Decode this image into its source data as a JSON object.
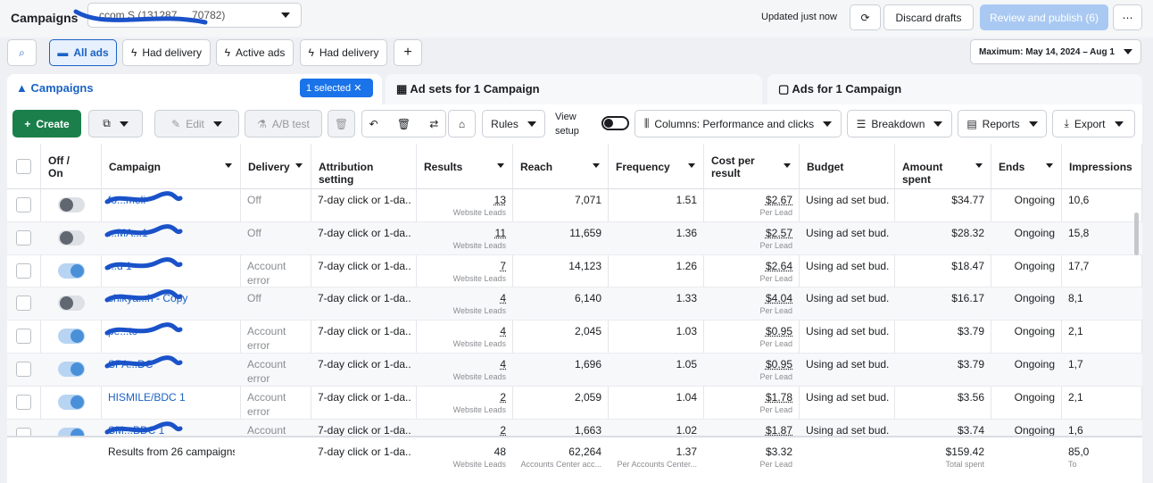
{
  "header": {
    "title": "Campaigns",
    "account": "ccom S (131287 ... 70782)",
    "updated": "Updated just now",
    "discard": "Discard drafts",
    "publish": "Review and publish (6)"
  },
  "filters": {
    "all_ads": "All ads",
    "had_delivery": "Had delivery",
    "active_ads": "Active ads",
    "had_delivery_2": "Had delivery",
    "date": "Maximum: May 14, 2024 – Aug 1"
  },
  "tabs": {
    "campaigns": "Campaigns",
    "selected": "1 selected",
    "ad_sets": "Ad sets for 1 Campaign",
    "ads": "Ads for 1 Campaign"
  },
  "toolbar": {
    "create": "Create",
    "edit": "Edit",
    "ab_test": "A/B test",
    "rules": "Rules",
    "view_setup": "View setup",
    "columns": "Columns: Performance and clicks",
    "breakdown": "Breakdown",
    "reports": "Reports",
    "export": "Export"
  },
  "table": {
    "columns": {
      "onoff": "Off / On",
      "name": "Campaign",
      "delivery": "Delivery",
      "attribution": "Attribution setting",
      "results": "Results",
      "reach": "Reach",
      "frequency": "Frequency",
      "cost": "Cost per result",
      "budget": "Budget",
      "spent": "Amount spent",
      "ends": "Ends",
      "impressions": "Impressions"
    },
    "rows": [
      {
        "on": false,
        "name": "fo...meli",
        "delivery": "Off",
        "attribution": "7-day click or 1-da...",
        "results": "13",
        "results_sub": "Website Leads",
        "reach": "7,071",
        "frequency": "1.51",
        "cost": "$2.67",
        "cost_sub": "Per Lead",
        "budget": "Using ad set bud...",
        "spent": "$34.77",
        "ends": "Ongoing",
        "impressions": "10,6"
      },
      {
        "on": false,
        "name": "...MA...1",
        "delivery": "Off",
        "attribution": "7-day click or 1-da...",
        "results": "11",
        "results_sub": "Website Leads",
        "reach": "11,659",
        "frequency": "1.36",
        "cost": "$2.57",
        "cost_sub": "Per Lead",
        "budget": "Using ad set bud...",
        "spent": "$28.32",
        "ends": "Ongoing",
        "impressions": "15,8"
      },
      {
        "on": true,
        "name": "...d 1",
        "delivery": "Account error",
        "attribution": "7-day click or 1-da...",
        "results": "7",
        "results_sub": "Website Leads",
        "reach": "14,123",
        "frequency": "1.26",
        "cost": "$2.64",
        "cost_sub": "Per Lead",
        "budget": "Using ad set bud...",
        "spent": "$18.47",
        "ends": "Ongoing",
        "impressions": "17,7"
      },
      {
        "on": false,
        "name": "shikya...h - Copy",
        "delivery": "Off",
        "attribution": "7-day click or 1-da...",
        "results": "4",
        "results_sub": "Website Leads",
        "reach": "6,140",
        "frequency": "1.33",
        "cost": "$4.04",
        "cost_sub": "Per Lead",
        "budget": "Using ad set bud...",
        "spent": "$16.17",
        "ends": "Ongoing",
        "impressions": "8,1"
      },
      {
        "on": true,
        "name": "pe...tc",
        "delivery": "Account error",
        "attribution": "7-day click or 1-da...",
        "results": "4",
        "results_sub": "Website Leads",
        "reach": "2,045",
        "frequency": "1.03",
        "cost": "$0.95",
        "cost_sub": "Per Lead",
        "budget": "Using ad set bud...",
        "spent": "$3.79",
        "ends": "Ongoing",
        "impressions": "2,1"
      },
      {
        "on": true,
        "name": "SPA...DC",
        "delivery": "Account error",
        "attribution": "7-day click or 1-da...",
        "results": "4",
        "results_sub": "Website Leads",
        "reach": "1,696",
        "frequency": "1.05",
        "cost": "$0.95",
        "cost_sub": "Per Lead",
        "budget": "Using ad set bud...",
        "spent": "$3.79",
        "ends": "Ongoing",
        "impressions": "1,7"
      },
      {
        "on": true,
        "name": "HISMILE/BDC 1",
        "delivery": "Account error",
        "attribution": "7-day click or 1-da...",
        "results": "2",
        "results_sub": "Website Leads",
        "reach": "2,059",
        "frequency": "1.04",
        "cost": "$1.78",
        "cost_sub": "Per Lead",
        "budget": "Using ad set bud...",
        "spent": "$3.56",
        "ends": "Ongoing",
        "impressions": "2,1"
      },
      {
        "on": true,
        "name": "SM...BDC 1",
        "delivery": "Account",
        "attribution": "7-day click or 1-da...",
        "results": "2",
        "results_sub": "Website Leads",
        "reach": "1,663",
        "frequency": "1.02",
        "cost": "$1.87",
        "cost_sub": "Per Lead",
        "budget": "Using ad set bud...",
        "spent": "$3.74",
        "ends": "Ongoing",
        "impressions": "1,6"
      }
    ],
    "footer": {
      "name": "Results from 26 campaigns",
      "attribution": "7-day click or 1-da...",
      "results": "48",
      "results_sub": "Website Leads",
      "reach": "62,264",
      "reach_sub": "Accounts Center acc...",
      "frequency": "1.37",
      "frequency_sub": "Per Accounts Center...",
      "cost": "$3.32",
      "cost_sub": "Per Lead",
      "spent": "$159.42",
      "spent_sub": "Total spent",
      "impressions": "85,0",
      "impressions_sub": "To"
    }
  }
}
